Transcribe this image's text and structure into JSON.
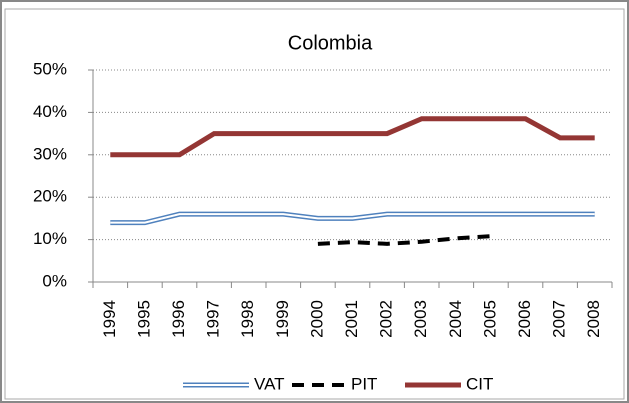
{
  "chart_data": {
    "type": "line",
    "title": "Colombia",
    "categories": [
      "1994",
      "1995",
      "1996",
      "1997",
      "1998",
      "1999",
      "2000",
      "2001",
      "2002",
      "2003",
      "2004",
      "2005",
      "2006",
      "2007",
      "2008"
    ],
    "series": [
      {
        "name": "VAT",
        "color": "#4f81bd",
        "values": [
          14,
          14,
          16,
          16,
          16,
          16,
          15,
          15,
          16,
          16,
          16,
          16,
          16,
          16,
          16
        ]
      },
      {
        "name": "PIT",
        "color": "#000000",
        "values": [
          null,
          null,
          null,
          null,
          null,
          null,
          9,
          9.4,
          9,
          9.5,
          10.3,
          10.8,
          null,
          null,
          null
        ]
      },
      {
        "name": "CIT",
        "color": "#943634",
        "values": [
          30,
          30,
          30,
          35,
          35,
          35,
          35,
          35,
          35,
          38.5,
          38.5,
          38.5,
          38.5,
          34,
          34
        ]
      }
    ],
    "ylim": [
      0,
      50
    ],
    "yticks": [
      {
        "value": 0,
        "label": "0%"
      },
      {
        "value": 10,
        "label": "10%"
      },
      {
        "value": 20,
        "label": "20%"
      },
      {
        "value": 30,
        "label": "30%"
      },
      {
        "value": 40,
        "label": "40%"
      },
      {
        "value": 50,
        "label": "50%"
      }
    ],
    "grid": true,
    "legend": "bottom"
  }
}
